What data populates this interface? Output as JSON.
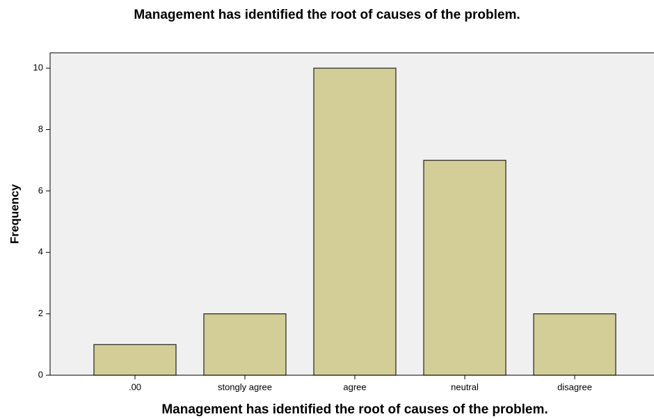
{
  "chart_data": {
    "type": "bar",
    "title": "Management has identified the root of causes of the problem.",
    "x_label": "Management has identified the root of causes of the problem.",
    "y_label": "Frequency",
    "categories": [
      ".00",
      "stongly agree",
      "agree",
      "neutral",
      "disagree"
    ],
    "values": [
      1,
      2,
      10,
      7,
      2
    ],
    "color": "#d3ce97",
    "ylim": [
      0,
      10.5
    ],
    "yticks": [
      0,
      2,
      4,
      6,
      8,
      10
    ],
    "grid": false
  }
}
